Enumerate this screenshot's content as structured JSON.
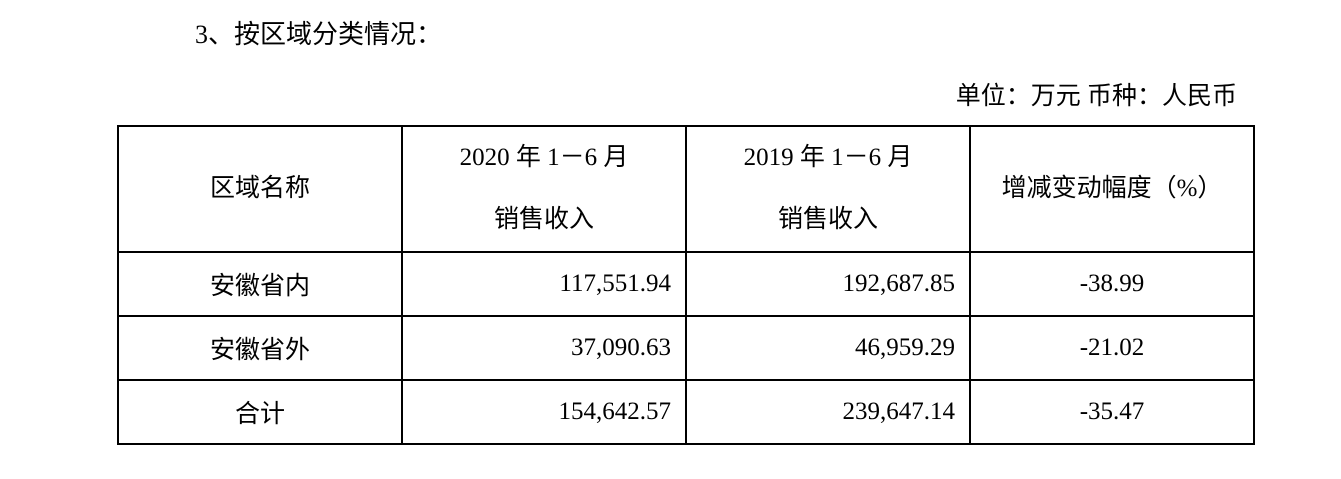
{
  "heading": "3、按区域分类情况：",
  "unit_note": "单位：万元 币种：人民币",
  "table": {
    "header": [
      [
        "区域名称"
      ],
      [
        "2020 年 1－6 月",
        "销售收入"
      ],
      [
        "2019 年 1－6 月",
        "销售收入"
      ],
      [
        "增减变动幅度（%）"
      ]
    ],
    "rows": [
      [
        "安徽省内",
        "117,551.94",
        "192,687.85",
        "-38.99"
      ],
      [
        "安徽省外",
        "37,090.63",
        "46,959.29",
        "-21.02"
      ],
      [
        "合计",
        "154,642.57",
        "239,647.14",
        "-35.47"
      ]
    ]
  }
}
